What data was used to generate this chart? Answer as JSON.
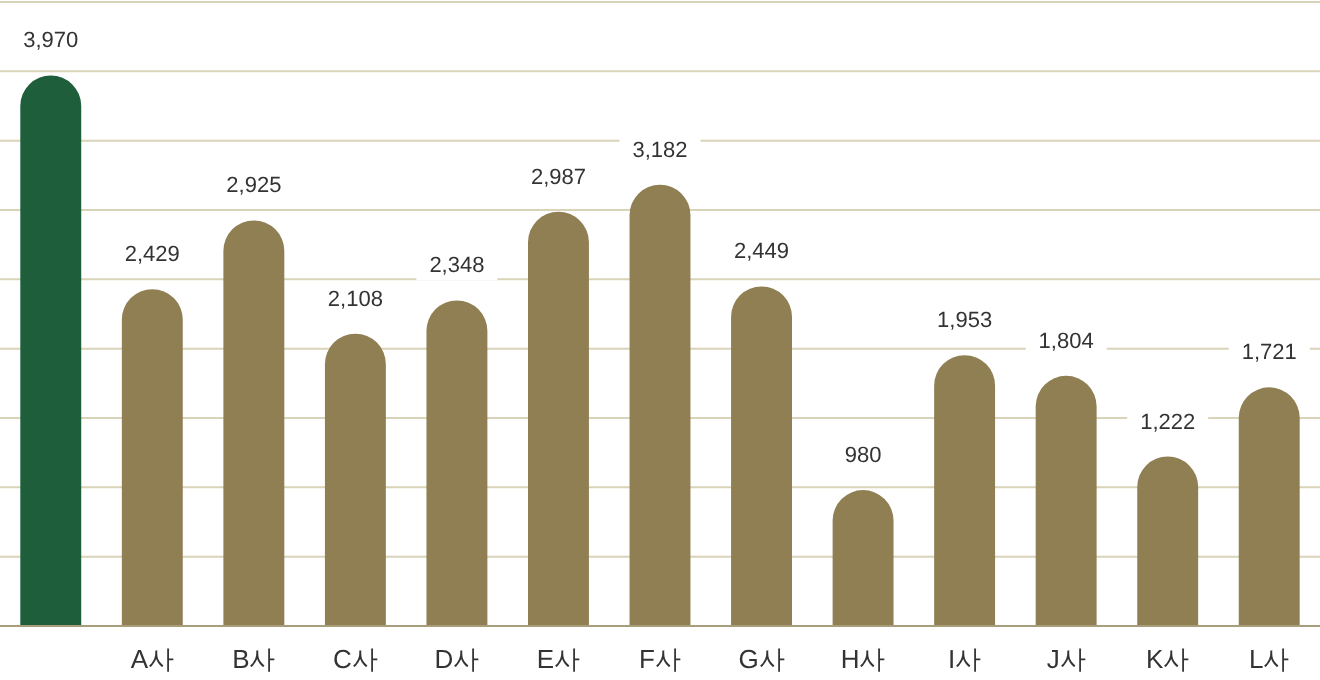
{
  "chart_data": {
    "type": "bar",
    "categories": [
      null,
      "A사",
      "B사",
      "C사",
      "D사",
      "E사",
      "F사",
      "G사",
      "H사",
      "I사",
      "J사",
      "K사",
      "L사"
    ],
    "values": [
      3970,
      2429,
      2925,
      2108,
      2348,
      2987,
      3182,
      2449,
      980,
      1953,
      1804,
      1222,
      1721
    ],
    "colors": [
      "#1e5e3b",
      "#8f7f52",
      "#8f7f52",
      "#8f7f52",
      "#8f7f52",
      "#8f7f52",
      "#8f7f52",
      "#8f7f52",
      "#8f7f52",
      "#8f7f52",
      "#8f7f52",
      "#8f7f52",
      "#8f7f52"
    ],
    "ylim": [
      0,
      4500
    ],
    "yticks": [
      {
        "value": 0,
        "label": null
      },
      {
        "value": 500,
        "label": null
      },
      {
        "value": 1000,
        "label": null
      },
      {
        "value": 1500,
        "label": null
      },
      {
        "value": 2000,
        "label": null
      },
      {
        "value": 2500,
        "label": null
      },
      {
        "value": 3000,
        "label": null
      },
      {
        "value": 3500,
        "label": null
      },
      {
        "value": 4000,
        "label": null
      },
      {
        "value": 4500,
        "label": null
      }
    ],
    "value_labels": [
      "3,970",
      "2,429",
      "2,925",
      "2,108",
      "2,348",
      "2,987",
      "3,182",
      "2,449",
      "980",
      "1,953",
      "1,804",
      "1,222",
      "1,721"
    ],
    "grid": "y",
    "tick_labels": "x"
  }
}
